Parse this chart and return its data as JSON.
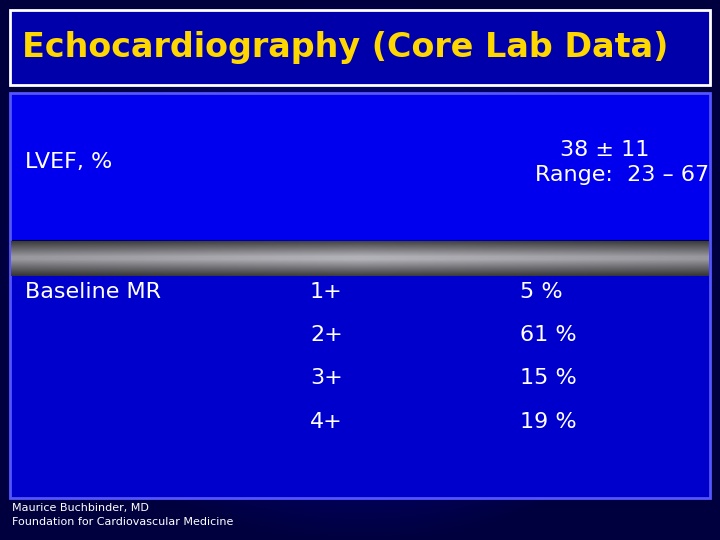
{
  "title": "Echocardiography (Core Lab Data)",
  "title_color": "#FFD700",
  "outer_bg": "#000080",
  "outer_bg_edge": "#000030",
  "title_box_fill": "#0000BB",
  "table_box_fill": "#0000CC",
  "lvef_label": "LVEF, %",
  "lvef_value_line1": "38 ± 11",
  "lvef_value_line2": "Range:  23 – 67",
  "baseline_label": "Baseline MR",
  "mr_grades": [
    "1+",
    "2+",
    "3+",
    "4+"
  ],
  "mr_values": [
    "5 %",
    "61 %",
    "15 %",
    "19 %"
  ],
  "text_color_white": "#FFFFFF",
  "footer_line1": "Maurice Buchbinder, MD",
  "footer_line2": "Foundation for Cardiovascular Medicine",
  "footer_color": "#FFFFFF"
}
